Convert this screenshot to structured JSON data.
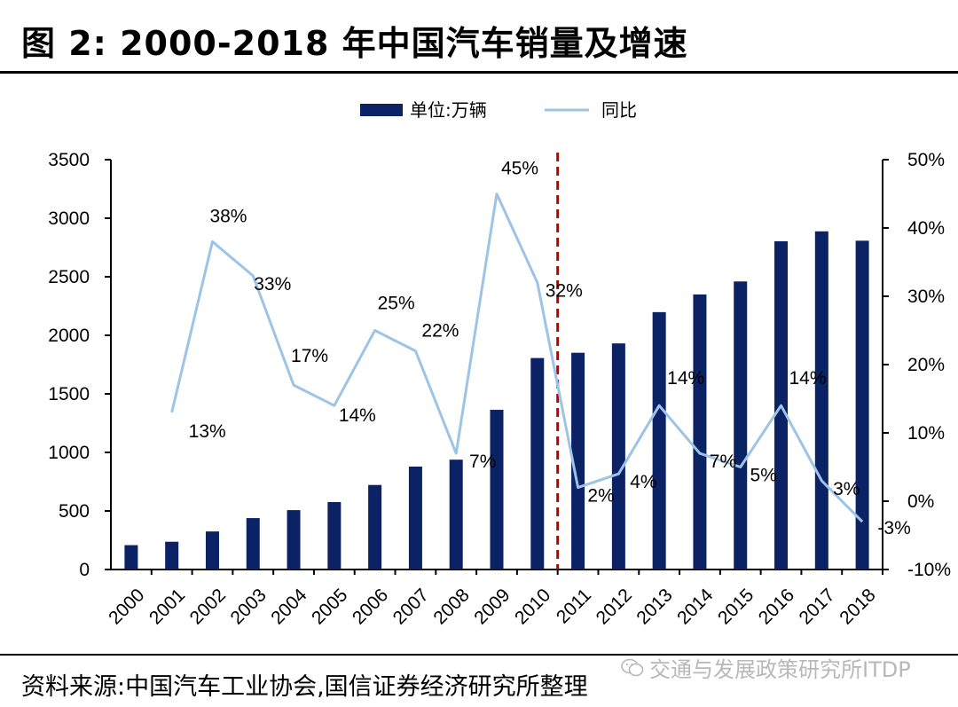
{
  "header": {
    "title": "图 2:  2000-2018 年中国汽车销量及增速"
  },
  "footer": {
    "source": "资料来源:中国汽车工业协会,国信证券经济研究所整理",
    "watermark": "交通与发展政策研究所ITDP"
  },
  "chart_data": {
    "type": "bar+line",
    "title": "2000-2018 年中国汽车销量及增速",
    "categories": [
      "2000",
      "2001",
      "2002",
      "2003",
      "2004",
      "2005",
      "2006",
      "2007",
      "2008",
      "2009",
      "2010",
      "2011",
      "2012",
      "2013",
      "2014",
      "2015",
      "2016",
      "2017",
      "2018"
    ],
    "series": [
      {
        "name": "单位:万辆",
        "type": "bar",
        "axis": "left",
        "color": "#0b2265",
        "values": [
          208,
          237,
          325,
          439,
          507,
          576,
          722,
          879,
          938,
          1364,
          1806,
          1851,
          1931,
          2198,
          2349,
          2460,
          2803,
          2888,
          2808
        ]
      },
      {
        "name": "同比",
        "type": "line",
        "axis": "right",
        "color": "#9dc3e6",
        "values": [
          null,
          13,
          38,
          33,
          17,
          14,
          25,
          22,
          7,
          45,
          32,
          2,
          4,
          14,
          7,
          5,
          14,
          3,
          -3
        ]
      }
    ],
    "data_labels": [
      "",
      "13%",
      "38%",
      "33%",
      "17%",
      "14%",
      "25%",
      "22%",
      "7%",
      "45%",
      "32%",
      "2%",
      "4%",
      "14%",
      "7%",
      "5%",
      "14%",
      "3%",
      "-3%"
    ],
    "left_axis": {
      "min": 0,
      "max": 3500,
      "ticks": [
        "0",
        "500",
        "1000",
        "1500",
        "2000",
        "2500",
        "3000",
        "3500"
      ]
    },
    "right_axis": {
      "min": -10,
      "max": 50,
      "ticks": [
        "-10%",
        "0%",
        "10%",
        "20%",
        "30%",
        "40%",
        "50%"
      ]
    },
    "divider_after": "2010",
    "legend": {
      "position": "top",
      "bar_label": "单位:万辆",
      "line_label": "同比"
    }
  }
}
